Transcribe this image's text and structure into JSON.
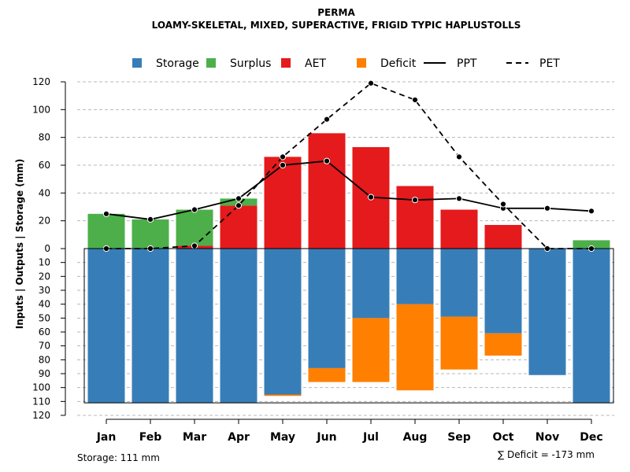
{
  "chart_data": {
    "type": "bar",
    "title": "PERMA",
    "subtitle": "LOAMY-SKELETAL, MIXED, SUPERACTIVE, FRIGID TYPIC HAPLUSTOLLS",
    "ylabel": "Inputs | Outputs | Storage    (mm)",
    "categories": [
      "Jan",
      "Feb",
      "Mar",
      "Apr",
      "May",
      "Jun",
      "Jul",
      "Aug",
      "Sep",
      "Oct",
      "Nov",
      "Dec"
    ],
    "upper_ylim": [
      0,
      120
    ],
    "upper_ticks": [
      "0",
      "20",
      "40",
      "60",
      "80",
      "100",
      "120"
    ],
    "lower_ylim": [
      0,
      120
    ],
    "lower_ticks": [
      "0",
      "10",
      "20",
      "30",
      "40",
      "50",
      "60",
      "70",
      "80",
      "90",
      "100",
      "110",
      "120"
    ],
    "legend": [
      {
        "label": "Storage",
        "type": "box",
        "color": "#377EB8"
      },
      {
        "label": "Surplus",
        "type": "box",
        "color": "#4DAF4A"
      },
      {
        "label": "AET",
        "type": "box",
        "color": "#E41A1C"
      },
      {
        "label": "Deficit",
        "type": "box",
        "color": "#FF7F00"
      },
      {
        "label": "PPT",
        "type": "line-solid",
        "color": "#000000"
      },
      {
        "label": "PET",
        "type": "line-dashed",
        "color": "#000000"
      }
    ],
    "series": [
      {
        "name": "AET",
        "color": "#E41A1C",
        "values": [
          0,
          0,
          2,
          31,
          66,
          83,
          73,
          45,
          28,
          17,
          0,
          0
        ]
      },
      {
        "name": "Surplus",
        "color": "#4DAF4A",
        "values": [
          25,
          21,
          26,
          5,
          0,
          0,
          0,
          0,
          0,
          0,
          0,
          6
        ]
      },
      {
        "name": "Storage",
        "color": "#377EB8",
        "values": [
          111,
          111,
          111,
          111,
          105,
          86,
          50,
          40,
          49,
          61,
          91,
          111
        ]
      },
      {
        "name": "Deficit",
        "color": "#FF7F00",
        "values": [
          0,
          0,
          0,
          0,
          1,
          10,
          46,
          62,
          38,
          16,
          0,
          0
        ]
      },
      {
        "name": "PPT",
        "color": "#000000",
        "values": [
          25,
          21,
          28,
          36,
          60,
          63,
          37,
          35,
          36,
          29,
          29,
          27
        ]
      },
      {
        "name": "PET",
        "color": "#000000",
        "values": [
          0,
          0,
          2,
          31,
          66,
          93,
          119,
          107,
          66,
          32,
          0,
          0
        ]
      }
    ],
    "storage_capacity": 111,
    "storage_note": "Storage: 111 mm",
    "deficit_note": "∑ Deficit = -173 mm"
  }
}
